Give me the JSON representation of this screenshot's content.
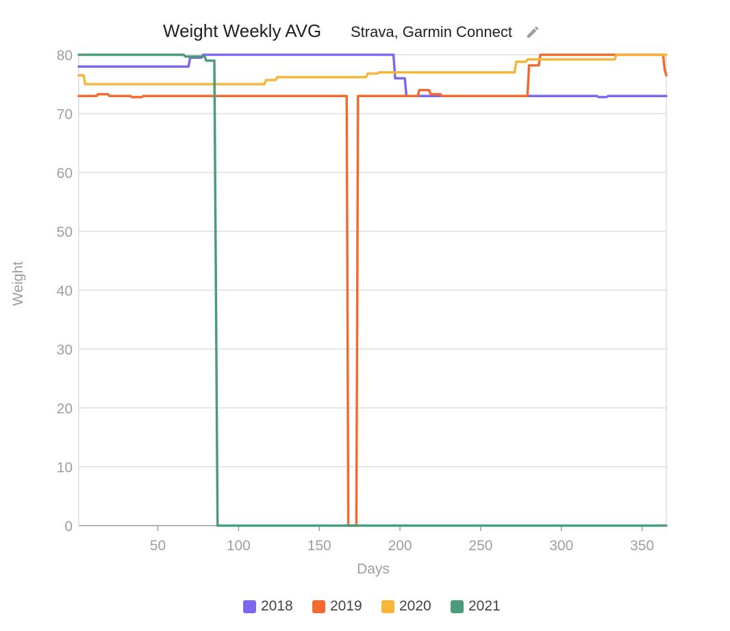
{
  "header": {
    "title": "Weight Weekly AVG",
    "source": "Strava, Garmin Connect",
    "edit_icon": "pencil-icon"
  },
  "chart_data": {
    "type": "line",
    "title": "Weight Weekly AVG",
    "xlabel": "Days",
    "ylabel": "Weight",
    "xlim": [
      1,
      365
    ],
    "ylim": [
      0,
      80
    ],
    "x_ticks": [
      50,
      100,
      150,
      200,
      250,
      300,
      350
    ],
    "y_ticks": [
      0,
      10,
      20,
      30,
      40,
      50,
      60,
      70,
      80
    ],
    "grid": true,
    "legend_position": "bottom",
    "interpolation": "step",
    "series": [
      {
        "name": "2018",
        "color": "#7b68ee",
        "points": [
          [
            1,
            78
          ],
          [
            69,
            78
          ],
          [
            70,
            79.5
          ],
          [
            77,
            79.5
          ],
          [
            78,
            80
          ],
          [
            196,
            80
          ],
          [
            197,
            76
          ],
          [
            203,
            76
          ],
          [
            204,
            73
          ],
          [
            322,
            73
          ],
          [
            323,
            72.8
          ],
          [
            328,
            72.8
          ],
          [
            329,
            73
          ],
          [
            365,
            73
          ]
        ]
      },
      {
        "name": "2019",
        "color": "#f26a30",
        "points": [
          [
            1,
            73
          ],
          [
            12,
            73
          ],
          [
            13,
            73.3
          ],
          [
            19,
            73.3
          ],
          [
            20,
            73
          ],
          [
            33,
            73
          ],
          [
            34,
            72.8
          ],
          [
            40,
            72.8
          ],
          [
            41,
            73
          ],
          [
            167,
            73
          ],
          [
            168,
            0
          ],
          [
            173,
            0
          ],
          [
            174,
            73
          ],
          [
            211,
            73
          ],
          [
            212,
            74
          ],
          [
            218,
            74
          ],
          [
            219,
            73.3
          ],
          [
            225,
            73.3
          ],
          [
            226,
            73
          ],
          [
            279,
            73
          ],
          [
            280,
            78.2
          ],
          [
            286,
            78.2
          ],
          [
            287,
            80
          ],
          [
            363,
            80
          ],
          [
            364,
            77.5
          ],
          [
            365,
            76.5
          ]
        ]
      },
      {
        "name": "2020",
        "color": "#f7b53a",
        "points": [
          [
            1,
            76.5
          ],
          [
            4,
            76.5
          ],
          [
            5,
            75
          ],
          [
            116,
            75
          ],
          [
            117,
            75.7
          ],
          [
            123,
            75.7
          ],
          [
            124,
            76.2
          ],
          [
            179,
            76.2
          ],
          [
            180,
            76.8
          ],
          [
            186,
            76.8
          ],
          [
            187,
            77
          ],
          [
            271,
            77
          ],
          [
            272,
            78.8
          ],
          [
            278,
            78.8
          ],
          [
            279,
            79.2
          ],
          [
            333,
            79.2
          ],
          [
            334,
            80
          ],
          [
            365,
            80
          ]
        ]
      },
      {
        "name": "2021",
        "color": "#4b9b7c",
        "points": [
          [
            1,
            80
          ],
          [
            66,
            80
          ],
          [
            67,
            79.7
          ],
          [
            79,
            79.7
          ],
          [
            80,
            79
          ],
          [
            85,
            79
          ],
          [
            87,
            0
          ],
          [
            365,
            0
          ]
        ]
      }
    ]
  },
  "legend": [
    {
      "label": "2018",
      "color": "#7b68ee"
    },
    {
      "label": "2019",
      "color": "#f26a30"
    },
    {
      "label": "2020",
      "color": "#f7b53a"
    },
    {
      "label": "2021",
      "color": "#4b9b7c"
    }
  ]
}
